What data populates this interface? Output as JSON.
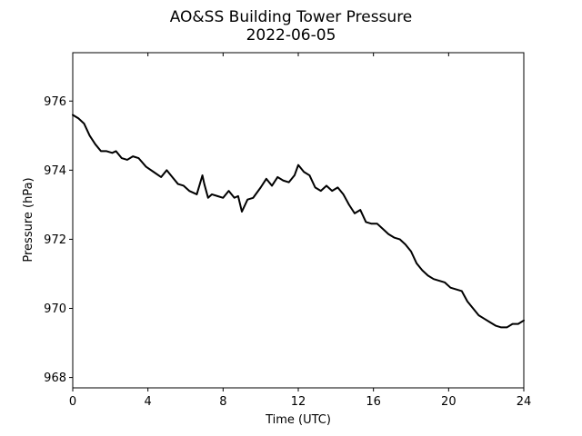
{
  "chart_data": {
    "type": "line",
    "title": "AO&SS Building Tower Pressure",
    "subtitle": "2022-06-05",
    "xlabel": "Time (UTC)",
    "ylabel": "Pressure (hPa)",
    "xlim": [
      0,
      24
    ],
    "ylim": [
      967.7,
      977.4
    ],
    "x_ticks": [
      0,
      4,
      8,
      12,
      16,
      20,
      24
    ],
    "y_ticks": [
      968,
      970,
      972,
      974,
      976
    ],
    "grid": false,
    "legend": "none",
    "line_color": "#000000",
    "series": [
      {
        "x": [
          0,
          0.3,
          0.6,
          0.9,
          1.2,
          1.5,
          1.8,
          2.1,
          2.3,
          2.6,
          2.9,
          3.2,
          3.5,
          3.9,
          4.3,
          4.7,
          5.0,
          5.3,
          5.6,
          5.9,
          6.2,
          6.6,
          6.9,
          7.0,
          7.2,
          7.4,
          7.7,
          8.0,
          8.3,
          8.6,
          8.8,
          9.0,
          9.3,
          9.6,
          10.0,
          10.3,
          10.6,
          10.9,
          11.2,
          11.5,
          11.8,
          12.0,
          12.3,
          12.6,
          12.9,
          13.2,
          13.5,
          13.8,
          14.1,
          14.4,
          14.7,
          15.0,
          15.3,
          15.6,
          15.9,
          16.2,
          16.5,
          16.8,
          17.1,
          17.4,
          17.7,
          18.0,
          18.3,
          18.6,
          18.9,
          19.2,
          19.5,
          19.8,
          20.1,
          20.4,
          20.7,
          21.0,
          21.3,
          21.6,
          21.9,
          22.2,
          22.5,
          22.8,
          23.1,
          23.4,
          23.7,
          24.0
        ],
        "values": [
          975.6,
          975.5,
          975.35,
          975.0,
          974.75,
          974.55,
          974.55,
          974.5,
          974.55,
          974.35,
          974.3,
          974.4,
          974.35,
          974.1,
          973.95,
          973.8,
          974.0,
          973.8,
          973.6,
          973.55,
          973.4,
          973.3,
          973.85,
          973.6,
          973.2,
          973.3,
          973.25,
          973.2,
          973.4,
          973.2,
          973.25,
          972.8,
          973.15,
          973.2,
          973.5,
          973.75,
          973.55,
          973.8,
          973.7,
          973.65,
          973.85,
          974.15,
          973.95,
          973.85,
          973.5,
          973.4,
          973.55,
          973.4,
          973.5,
          973.3,
          973.0,
          972.75,
          972.85,
          972.5,
          972.45,
          972.45,
          972.3,
          972.15,
          972.05,
          972.0,
          971.85,
          971.65,
          971.3,
          971.1,
          970.95,
          970.85,
          970.8,
          970.75,
          970.6,
          970.55,
          970.5,
          970.2,
          970.0,
          969.8,
          969.7,
          969.6,
          969.5,
          969.45,
          969.45,
          969.55,
          969.55,
          969.65
        ]
      }
    ]
  }
}
